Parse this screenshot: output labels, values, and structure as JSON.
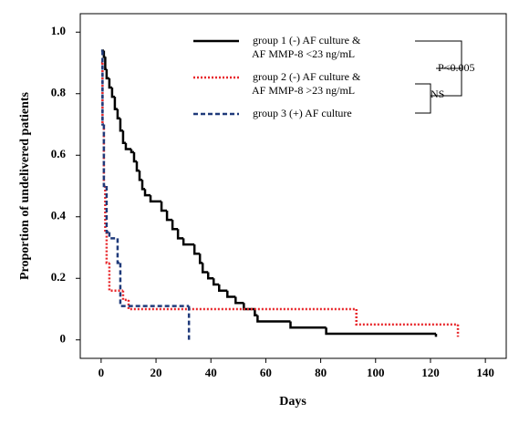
{
  "chart_data": {
    "type": "line",
    "step": true,
    "x_label": "Days",
    "y_label": "Proportion of undelivered patients",
    "xlim": [
      -7.6,
      147.6
    ],
    "ylim": [
      -0.06,
      1.06
    ],
    "xticks": [
      0,
      20,
      40,
      60,
      80,
      100,
      120,
      140
    ],
    "yticks": [
      0,
      0.2,
      0.4,
      0.6,
      0.8,
      {
        "value": 1,
        "label": "1.0"
      }
    ],
    "series": [
      {
        "name": [
          "group 1 (-) AF culture &",
          "AF MMP-8 <23 ng/mL"
        ],
        "color": "#000000",
        "dash": "solid",
        "x": [
          0.5,
          1,
          1.5,
          2,
          3,
          4,
          5,
          6,
          7,
          8,
          9,
          11,
          12,
          13,
          14,
          15,
          16,
          18,
          22,
          24,
          26,
          28,
          30,
          34,
          36,
          37,
          39,
          41,
          43,
          46,
          49,
          52,
          56,
          57,
          69,
          82,
          122
        ],
        "values": [
          0.94,
          0.92,
          0.88,
          0.85,
          0.82,
          0.79,
          0.75,
          0.72,
          0.68,
          0.64,
          0.62,
          0.61,
          0.58,
          0.55,
          0.52,
          0.49,
          0.47,
          0.45,
          0.42,
          0.39,
          0.36,
          0.33,
          0.31,
          0.28,
          0.25,
          0.22,
          0.2,
          0.18,
          0.16,
          0.14,
          0.12,
          0.1,
          0.08,
          0.06,
          0.04,
          0.02,
          0.01
        ]
      },
      {
        "name": [
          "group 2 (-) AF culture &",
          "AF MMP-8 >23 ng/mL"
        ],
        "color": "#e8262a",
        "dash": "dotted",
        "x": [
          0,
          0.5,
          1,
          1.5,
          2,
          3,
          8,
          10,
          93,
          130
        ],
        "values": [
          0.9,
          0.7,
          0.5,
          0.35,
          0.25,
          0.16,
          0.13,
          0.1,
          0.05,
          0.01
        ]
      },
      {
        "name": [
          "group 3 (+) AF culture"
        ],
        "color": "#1f3a7a",
        "dash": "dashed",
        "x": [
          0,
          0.5,
          1,
          2,
          3,
          6,
          7,
          32
        ],
        "values": [
          0.94,
          0.7,
          0.5,
          0.35,
          0.33,
          0.25,
          0.11,
          0
        ]
      }
    ],
    "annotations": [
      "P<0.005",
      "NS"
    ]
  }
}
